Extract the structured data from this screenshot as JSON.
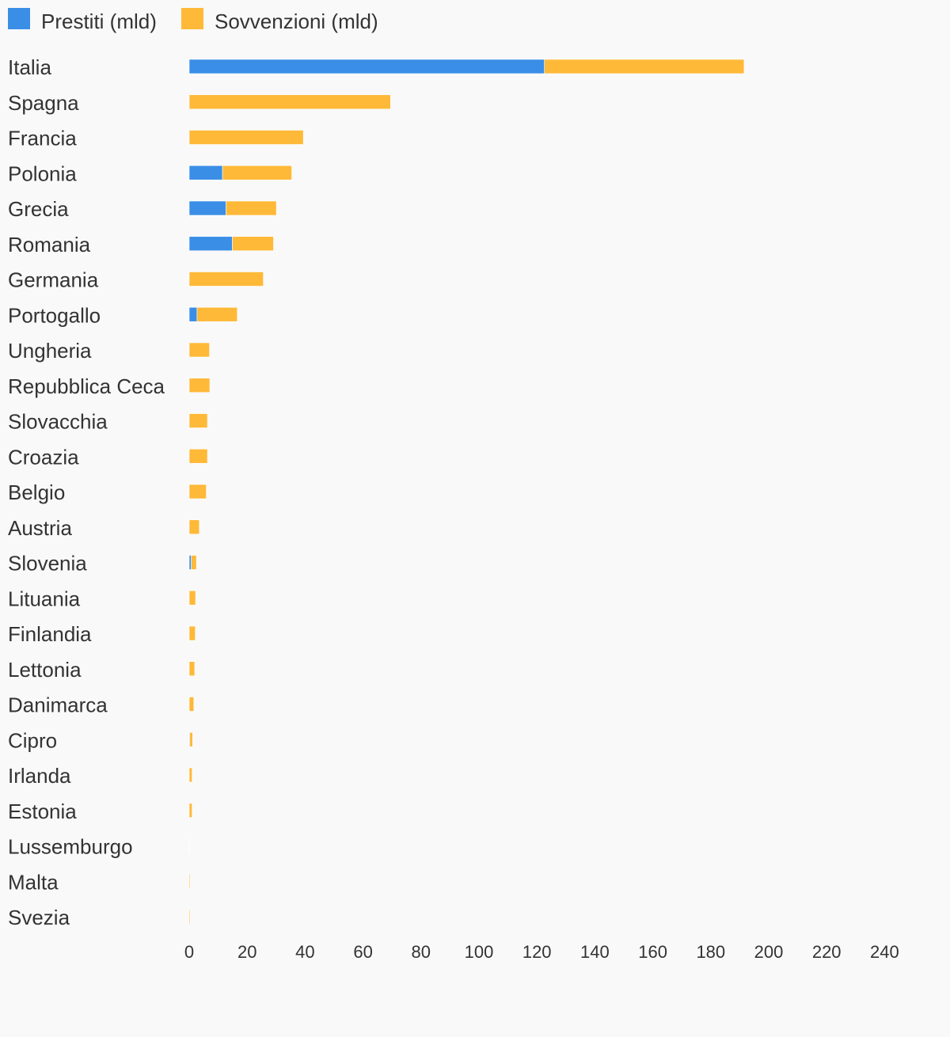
{
  "chart_data": {
    "type": "bar",
    "orientation": "horizontal",
    "stacked": true,
    "categories": [
      "Italia",
      "Spagna",
      "Francia",
      "Polonia",
      "Grecia",
      "Romania",
      "Germania",
      "Portogallo",
      "Ungheria",
      "Repubblica Ceca",
      "Slovacchia",
      "Croazia",
      "Belgio",
      "Austria",
      "Slovenia",
      "Lituania",
      "Finlandia",
      "Lettonia",
      "Danimarca",
      "Cipro",
      "Irlanda",
      "Estonia",
      "Lussemburgo",
      "Malta",
      "Svezia"
    ],
    "series": [
      {
        "name": "Prestiti (mld)",
        "color": "#3a8ee6",
        "values": [
          122.6,
          0,
          0,
          11.5,
          12.7,
          14.9,
          0,
          2.7,
          0,
          0,
          0,
          0,
          0,
          0,
          0.7,
          0,
          0,
          0,
          0,
          0.2,
          0,
          0,
          0,
          0,
          0
        ]
      },
      {
        "name": "Sovvenzioni (mld)",
        "color": "#ffb938",
        "values": [
          68.9,
          69.5,
          39.4,
          23.9,
          17.4,
          14.2,
          25.6,
          13.9,
          7.0,
          7.1,
          6.3,
          6.3,
          5.9,
          3.5,
          1.8,
          2.2,
          2.1,
          1.9,
          1.6,
          1.0,
          1.0,
          1.0,
          0.1,
          0.3,
          0.3
        ]
      }
    ],
    "xlim": [
      0,
      240
    ],
    "xticks": [
      0,
      20,
      40,
      60,
      80,
      100,
      120,
      140,
      160,
      180,
      200,
      220,
      240
    ],
    "grid": false,
    "legend_position": "top-left",
    "title": "",
    "xlabel": "",
    "ylabel": ""
  }
}
